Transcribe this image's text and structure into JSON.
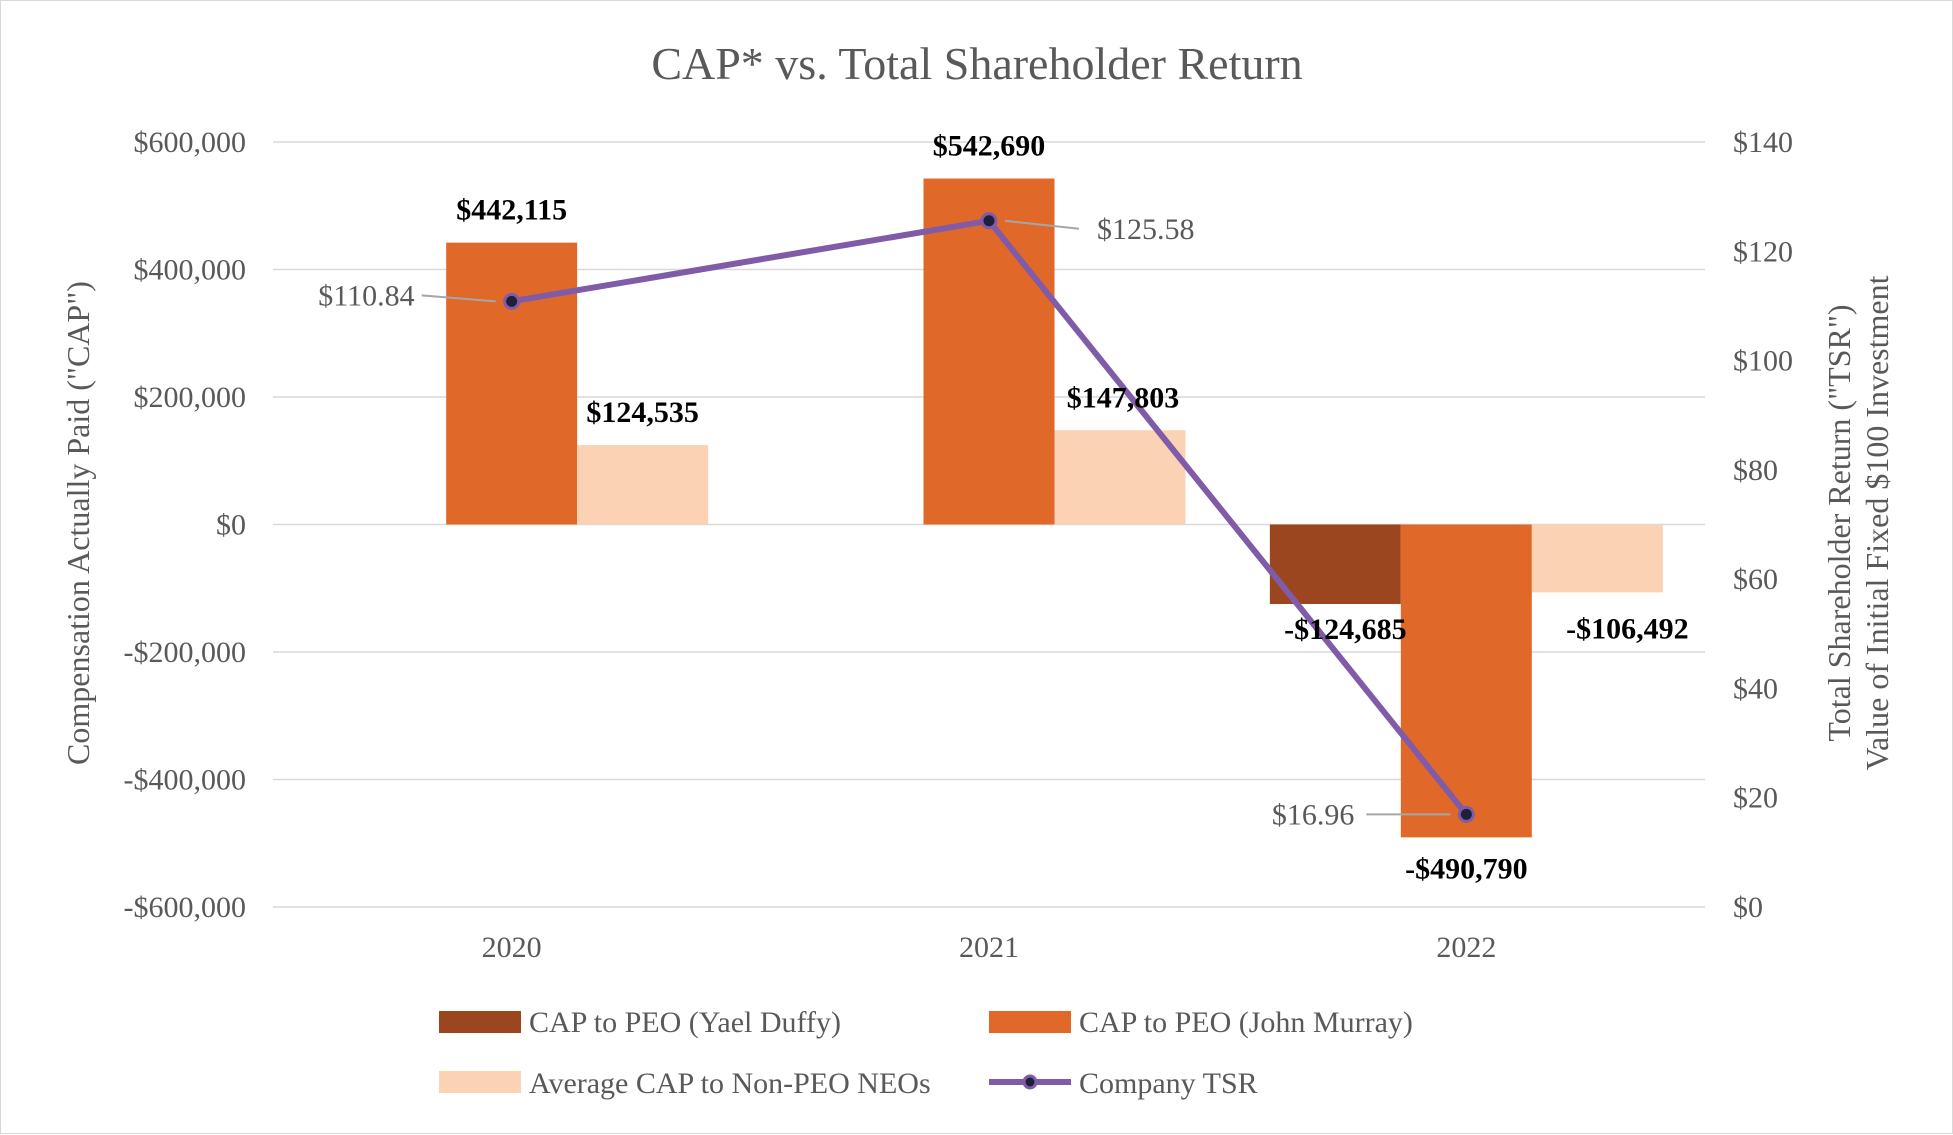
{
  "chart_data": {
    "type": "bar",
    "title": "CAP* vs. Total Shareholder Return",
    "ylabel": "Compensation Actually Paid (\"CAP\")",
    "y2label_line1": "Total Shareholder Return (\"TSR\")",
    "y2label_line2": "Value of Initial Fixed $100 Investment",
    "categories": [
      "2020",
      "2021",
      "2022"
    ],
    "ylim": [
      -600000,
      600000
    ],
    "y_ticks": [
      600000,
      400000,
      200000,
      0,
      -200000,
      -400000,
      -600000
    ],
    "y_tick_labels": [
      "$600,000",
      "$400,000",
      "$200,000",
      "$0",
      "-$200,000",
      "-$400,000",
      "-$600,000"
    ],
    "y2lim": [
      0,
      140
    ],
    "y2_ticks": [
      140,
      120,
      100,
      80,
      60,
      40,
      20,
      0
    ],
    "y2_tick_labels": [
      "$140",
      "$120",
      "$100",
      "$80",
      "$60",
      "$40",
      "$20",
      "$0"
    ],
    "series": [
      {
        "name": "CAP to PEO (Yael Duffy)",
        "color": "#9c4620",
        "values": [
          null,
          null,
          -124685
        ],
        "labels": [
          "",
          "",
          "-$124,685"
        ]
      },
      {
        "name": "CAP to PEO (John Murray)",
        "color": "#e0692a",
        "values": [
          442115,
          542690,
          -490790
        ],
        "labels": [
          "$442,115",
          "$542,690",
          "-$490,790"
        ]
      },
      {
        "name": "Average CAP to Non-PEO NEOs",
        "color": "#fbd2b4",
        "values": [
          124535,
          147803,
          -106492
        ],
        "labels": [
          "$124,535",
          "$147,803",
          "-$106,492"
        ]
      }
    ],
    "line_series": {
      "name": "Company TSR",
      "color": "#7f5ba8",
      "axis": "secondary",
      "values": [
        110.84,
        125.58,
        16.96
      ],
      "labels": [
        "$110.84",
        "$125.58",
        "$16.96"
      ]
    },
    "grid": true,
    "legend_position": "bottom"
  }
}
